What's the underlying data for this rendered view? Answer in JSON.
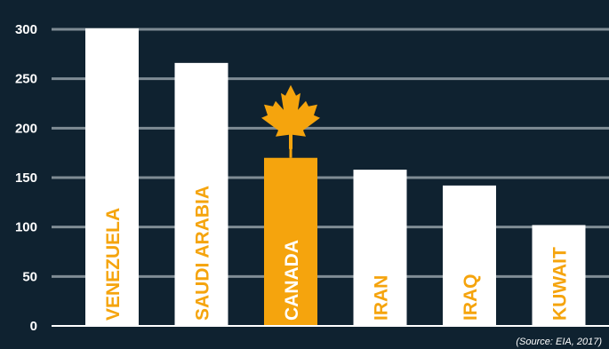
{
  "chart_data": {
    "type": "bar",
    "categories": [
      "VENEZUELA",
      "SAUDI ARABIA",
      "CANADA",
      "IRAN",
      "IRAQ",
      "KUWAIT"
    ],
    "values": [
      301,
      266,
      170,
      158,
      142,
      102
    ],
    "ylim": [
      0,
      300
    ],
    "yticks": [
      0,
      50,
      100,
      150,
      200,
      250,
      300
    ],
    "grid": true,
    "highlight_category": "CANADA",
    "highlight_icon": "maple-leaf-icon"
  },
  "source_note": "(Source: EIA, 2017)",
  "colors": {
    "background": "#0f2230",
    "bar": "#ffffff",
    "highlight": "#f5a40d",
    "label_on_white": "#f5a40d",
    "label_on_highlight": "#ffffff",
    "grid": "#7f8c94"
  }
}
